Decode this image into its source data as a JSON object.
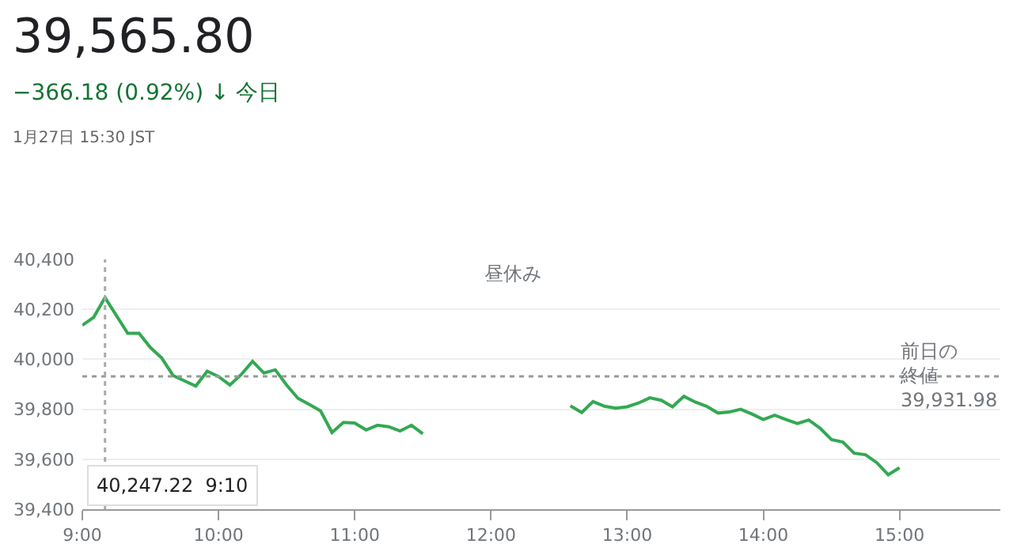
{
  "chart_data": {
    "type": "line",
    "title": "39,565.80",
    "subtitle": "−366.18 (0.92%) ↓ 今日",
    "annotations": [
      "1月27日 15:30 JST",
      "昼休み",
      "40,247.22  9:10"
    ],
    "x": [
      9,
      9.0833,
      9.1667,
      9.3333,
      9.4167,
      9.5,
      9.5833,
      9.6667,
      9.8333,
      9.9167,
      10,
      10.0833,
      10.1667,
      10.25,
      10.3333,
      10.4167,
      10.5,
      10.5833,
      10.6667,
      10.75,
      10.8333,
      10.9167,
      11,
      11.0833,
      11.1667,
      11.25,
      11.3333,
      11.4167,
      11.5,
      12,
      12.5833,
      12.6667,
      12.75,
      12.8333,
      12.9167,
      13,
      13.0833,
      13.1667,
      13.25,
      13.3333,
      13.4167,
      13.5,
      13.5833,
      13.6667,
      13.75,
      13.8333,
      13.9167,
      14,
      14.0833,
      14.1667,
      14.25,
      14.3333,
      14.4167,
      14.5,
      14.5833,
      14.6667,
      14.75,
      14.8333,
      14.9167,
      15
    ],
    "series": [
      {
        "color": "#34a853",
        "values": [
          40136,
          40168,
          40247,
          40104,
          40104,
          40047,
          40005,
          39935,
          39893,
          39952,
          39931,
          39897,
          39939,
          39992,
          39945,
          39958,
          39897,
          39844,
          39819,
          39793,
          39707,
          39747,
          39745,
          39717,
          39736,
          39730,
          39713,
          39736,
          39702,
          null,
          39814,
          39787,
          39831,
          39812,
          39804,
          39810,
          39825,
          39846,
          39836,
          39810,
          39852,
          39829,
          39812,
          39785,
          39789,
          39800,
          39781,
          39759,
          39776,
          39759,
          39743,
          39757,
          39724,
          39679,
          39669,
          39624,
          39618,
          39586,
          39538,
          39566
        ]
      }
    ],
    "xlim": [
      9,
      15.74
    ],
    "xticks": [
      {
        "value": 9,
        "label": "9:00"
      },
      {
        "value": 10,
        "label": "10:00"
      },
      {
        "value": 11,
        "label": "11:00"
      },
      {
        "value": 12,
        "label": "12:00"
      },
      {
        "value": 13,
        "label": "13:00"
      },
      {
        "value": 14,
        "label": "14:00"
      },
      {
        "value": 15,
        "label": "15:00"
      }
    ],
    "ylim": [
      39400,
      40400
    ],
    "yticks": [
      {
        "value": 39400,
        "label": "39,400"
      },
      {
        "value": 39600,
        "label": "39,600"
      },
      {
        "value": 39800,
        "label": "39,800"
      },
      {
        "value": 40000,
        "label": "40,000"
      },
      {
        "value": 40200,
        "label": "40,200"
      },
      {
        "value": 40400,
        "label": "40,400"
      }
    ],
    "ref_lines": [
      {
        "axis": "y",
        "value": 39931.98,
        "label": "前日の終値 39,931.98",
        "color": "#999999",
        "line_style": "dotted"
      },
      {
        "axis": "x",
        "value": 9.1667,
        "color": "#aaaaaa",
        "line_style": "dotted"
      }
    ],
    "grid": "y",
    "legend": false,
    "marker": "none",
    "line_style": "solid"
  }
}
